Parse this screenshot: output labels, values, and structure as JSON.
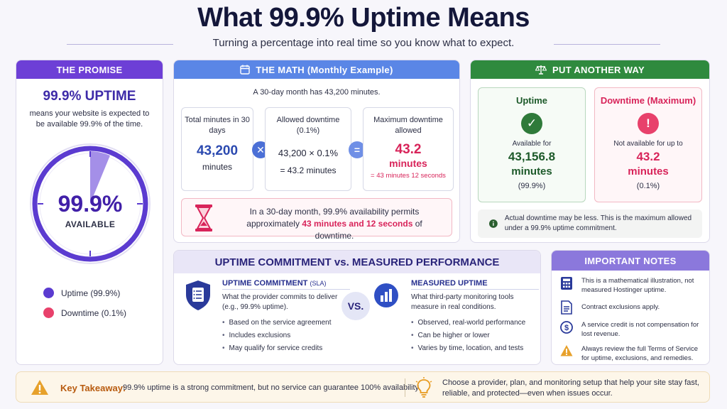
{
  "header": {
    "title": "What 99.9% Uptime Means",
    "subtitle": "Turning a percentage into real time so you know what to expect."
  },
  "colors": {
    "purple": "#6d3fd6",
    "blue": "#5a86e6",
    "green": "#2f8a3e",
    "pink": "#d8245a",
    "lavender": "#8b78dc",
    "orange": "#e7a12b"
  },
  "promise": {
    "header": "THE PROMISE",
    "title": "99.9% UPTIME",
    "text": "means your website is expected to be available 99.9% of the time.",
    "dial_value": "99.9%",
    "dial_label": "AVAILABLE",
    "legend": [
      {
        "label": "Uptime (99.9%)",
        "color": "#5b3bd0",
        "icon": "purple-dot"
      },
      {
        "label": "Downtime (0.1%)",
        "color": "#e8416b",
        "icon": "pink-dot"
      }
    ]
  },
  "math": {
    "header": "THE MATH (Monthly Example)",
    "intro": "A 30-day month has 43,200 minutes.",
    "box1": {
      "label": "Total minutes in 30 days",
      "value": "43,200",
      "unit": "minutes"
    },
    "box2": {
      "label": "Allowed downtime (0.1%)",
      "formula": "43,200 × 0.1%",
      "result": "= 43.2 minutes"
    },
    "box3": {
      "label": "Maximum downtime allowed",
      "value": "43.2",
      "unit": "minutes",
      "detail": "= 43 minutes 12 seconds"
    },
    "summary_pre": "In a 30-day month, 99.9% availability permits approximately",
    "summary_highlight": "43 minutes and 12 seconds",
    "summary_post": "of downtime."
  },
  "another": {
    "header": "PUT ANOTHER WAY",
    "uptime": {
      "title": "Uptime",
      "caption": "Available for",
      "value": "43,156.8",
      "unit": "minutes",
      "pct": "(99.9%)"
    },
    "downtime": {
      "title": "Downtime (Maximum)",
      "caption": "Not available for up to",
      "value": "43.2",
      "unit": "minutes",
      "pct": "(0.1%)"
    },
    "note": "Actual downtime may be less. This is the maximum allowed under a 99.9% uptime commitment."
  },
  "comparison": {
    "header": "UPTIME COMMITMENT vs. MEASURED PERFORMANCE",
    "vs": "VS.",
    "left": {
      "title": "UPTIME COMMITMENT",
      "title_small": "(SLA)",
      "desc": "What the provider commits to deliver (e.g., 99.9% uptime).",
      "items": [
        "Based on the service agreement",
        "Includes exclusions",
        "May qualify for service credits"
      ]
    },
    "right": {
      "title": "MEASURED UPTIME",
      "desc": "What third-party monitoring tools measure in real conditions.",
      "items": [
        "Observed, real-world performance",
        "Can be higher or lower",
        "Varies by time, location, and tests"
      ]
    }
  },
  "notes": {
    "header": "IMPORTANT NOTES",
    "items": [
      {
        "icon": "calculator-icon",
        "text": "This is a mathematical illustration, not measured Hostinger uptime."
      },
      {
        "icon": "document-icon",
        "text": "Contract exclusions apply."
      },
      {
        "icon": "dollar-icon",
        "text": "A service credit is not compensation for lost revenue."
      },
      {
        "icon": "warning-icon",
        "text": "Always review the full Terms of Service for uptime, exclusions, and remedies."
      }
    ]
  },
  "takeaway": {
    "label": "Key Takeaway:",
    "text": "99.9% uptime is a strong commitment, but no service can guarantee 100% availability.",
    "advice": "Choose a provider, plan, and monitoring setup that help your site stay fast, reliable, and protected—even when issues occur."
  }
}
